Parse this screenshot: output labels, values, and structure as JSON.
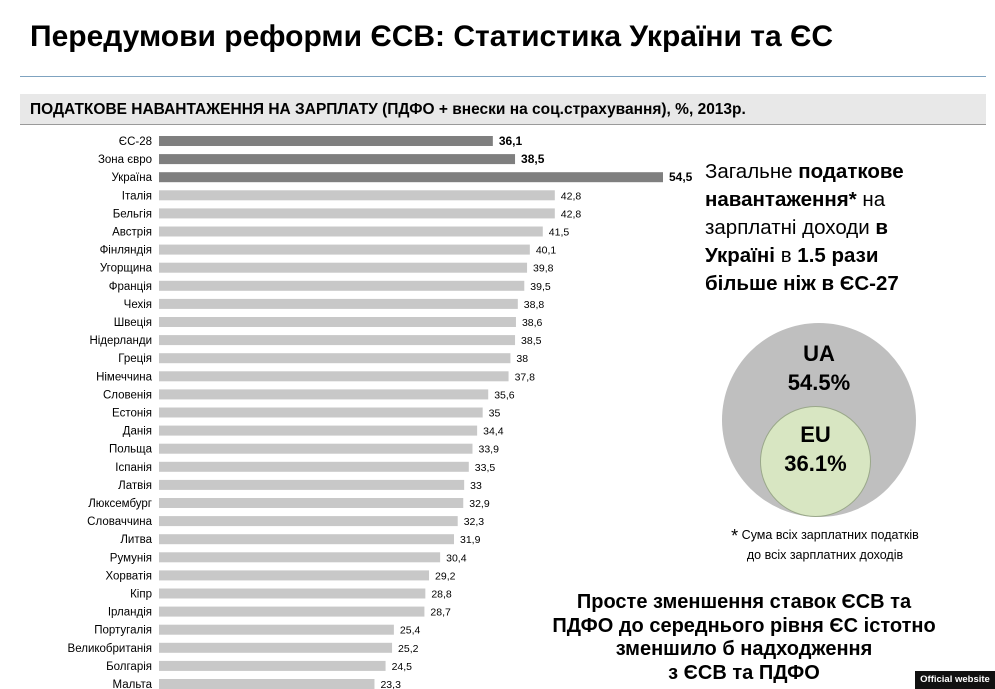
{
  "header": {
    "title": "Передумови реформи ЄСВ: Статистика України та ЄС",
    "subtitle": "ПОДАТКОВЕ НАВАНТАЖЕННЯ НА ЗАРПЛАТУ (ПДФО + внески на соц.страхування), %, 2013р."
  },
  "chart_data": {
    "type": "bar",
    "orientation": "horizontal",
    "title": "ПОДАТКОВЕ НАВАНТАЖЕННЯ НА ЗАРПЛАТУ (ПДФО + внески на соц.страхування), %, 2013р.",
    "categories": [
      "ЄС-28",
      "Зона євро",
      "Україна",
      "Італія",
      "Бельгія",
      "Австрія",
      "Фінляндія",
      "Угорщина",
      "Франція",
      "Чехія",
      "Швеція",
      "Нідерланди",
      "Греція",
      "Німеччина",
      "Словенія",
      "Естонія",
      "Данія",
      "Польща",
      "Іспанія",
      "Латвія",
      "Люксембург",
      "Словаччина",
      "Литва",
      "Румунія",
      "Хорватія",
      "Кіпр",
      "Ірландія",
      "Португалія",
      "Великобританія",
      "Болгарія",
      "Мальта"
    ],
    "values": [
      36.1,
      38.5,
      54.5,
      42.8,
      42.8,
      41.5,
      40.1,
      39.8,
      39.5,
      38.8,
      38.6,
      38.5,
      38,
      37.8,
      35.6,
      35,
      34.4,
      33.9,
      33.5,
      33,
      32.9,
      32.3,
      31.9,
      30.4,
      29.2,
      28.8,
      28.7,
      25.4,
      25.2,
      24.5,
      23.3
    ],
    "value_labels": [
      "36,1",
      "38,5",
      "54,5",
      "42,8",
      "42,8",
      "41,5",
      "40,1",
      "39,8",
      "39,5",
      "38,8",
      "38,6",
      "38,5",
      "38",
      "37,8",
      "35,6",
      "35",
      "34,4",
      "33,9",
      "33,5",
      "33",
      "32,9",
      "32,3",
      "31,9",
      "30,4",
      "29,2",
      "28,8",
      "28,7",
      "25,4",
      "25,2",
      "24,5",
      "23,3"
    ],
    "highlighted": [
      "ЄС-28",
      "Зона євро",
      "Україна"
    ],
    "colors": {
      "highlight": "#7f7f7f",
      "default": "#c8c8c8"
    },
    "xlim": [
      0,
      54.5
    ],
    "grid": false,
    "legend": "none"
  },
  "callout": {
    "p1": "Загальне ",
    "b1": "податкове навантаження",
    "star": "*",
    "p2": " на зарплатні доходи ",
    "b2": "в Україні",
    "p3": " в ",
    "b3": "1.5 рази більше ніж в ЄС-27"
  },
  "venn": {
    "outer_label": "UA",
    "outer_value": "54.5%",
    "inner_label": "EU",
    "inner_value": "36.1%",
    "outer_color": "#bfbfbf",
    "inner_color": "#d8e6c2"
  },
  "footnote": {
    "star": "*",
    "line1": " Сума всіх зарплатних податків",
    "line2": "до всіх зарплатних доходів"
  },
  "conclusion": {
    "line1": "Просте зменшення ставок ЄСВ та",
    "line2": "ПДФО до середнього рівня ЄС істотно",
    "line3": "зменшило б надходження",
    "line4": "з ЄСВ та ПДФО"
  },
  "badge": "Official website"
}
